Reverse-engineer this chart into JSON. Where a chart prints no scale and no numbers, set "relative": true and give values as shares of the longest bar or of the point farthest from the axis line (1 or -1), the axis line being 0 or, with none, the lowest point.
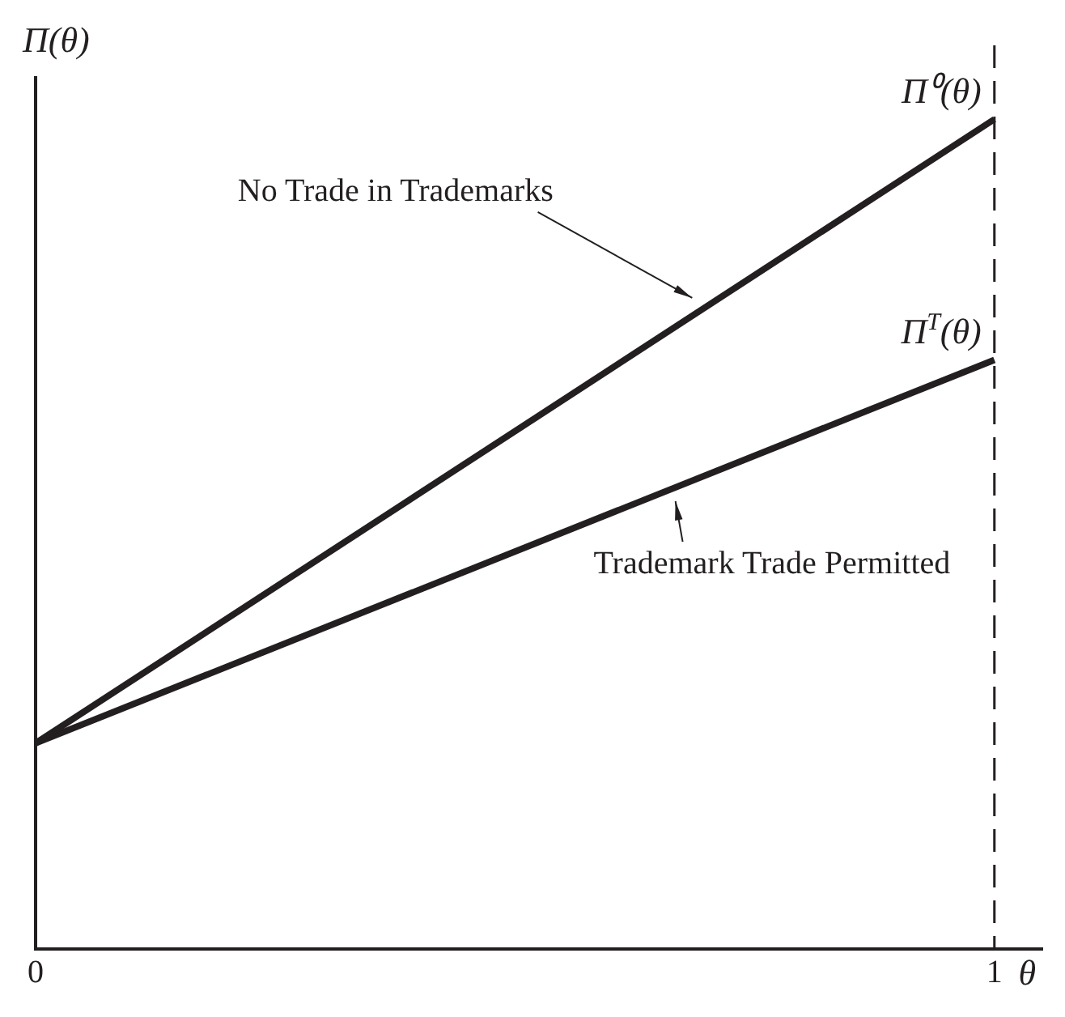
{
  "chart_data": {
    "type": "line",
    "relative": true,
    "ylabel": "Π(θ)",
    "xlabel": "θ",
    "x": [
      0,
      1
    ],
    "xlim": [
      0,
      1.05
    ],
    "xticks": [
      0,
      1
    ],
    "grid": false,
    "legend": false,
    "marker": "none",
    "line_style": "solid",
    "series": [
      {
        "name": "Π⁰(θ)",
        "color": "#231f20",
        "values": [
          0.248,
          1
        ]
      },
      {
        "name": "Π$^{T}$(θ)",
        "color": "#231f20",
        "values": [
          0.248,
          0.71
        ]
      }
    ],
    "ref_lines": [
      {
        "axis": "x",
        "value": 1,
        "line_style": "dashed",
        "color": "#231f20"
      }
    ],
    "annotations": [
      "No Trade in Trademarks",
      "Trademark Trade Permitted"
    ]
  }
}
